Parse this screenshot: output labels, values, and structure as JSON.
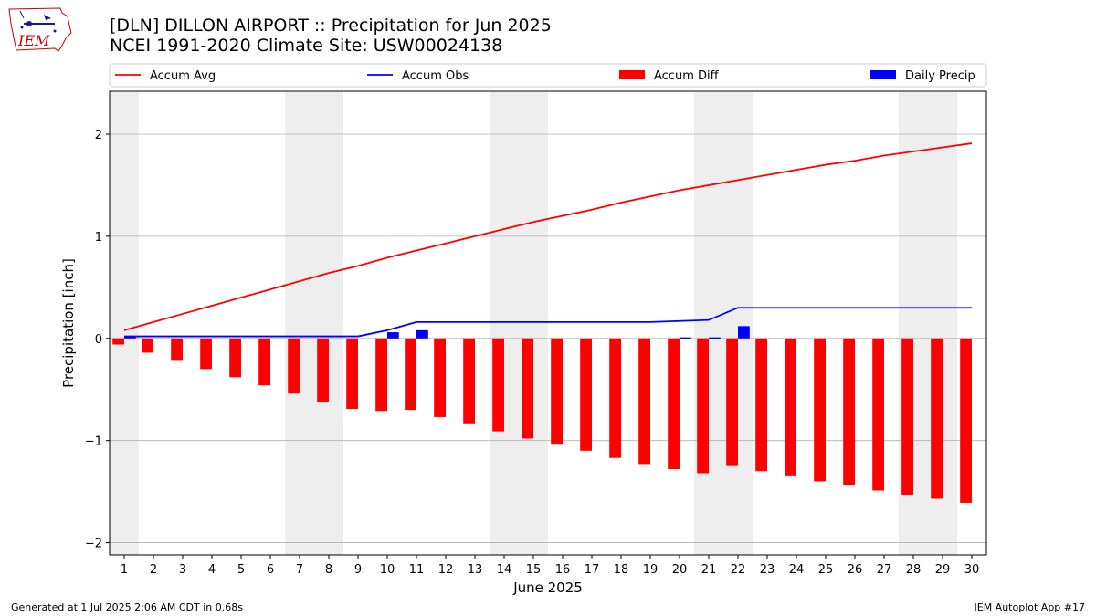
{
  "header": {
    "title": "[DLN] DILLON AIRPORT :: Precipitation for Jun 2025",
    "subtitle": "NCEI 1991-2020 Climate Site: USW00024138"
  },
  "logo": {
    "text": "IEM",
    "icon": "iem-logo-icon",
    "color": "#cc0000"
  },
  "footer": {
    "left": "Generated at 1 Jul 2025 2:06 AM CDT in 0.68s",
    "right": "IEM Autoplot App #17"
  },
  "colors": {
    "avg": "#ff0000",
    "obs": "#0000ff",
    "diff": "#ff0000",
    "daily": "#0000ff",
    "weekend_shade": "#eeeeee",
    "grid": "#b0b0b0"
  },
  "chart_data": {
    "type": "bar",
    "xlabel": "June 2025",
    "ylabel": "Precipitation [inch]",
    "ylim": [
      -2.12,
      2.42
    ],
    "yticks": [
      -2,
      -1,
      0,
      1,
      2
    ],
    "ytick_labels": [
      "−2",
      "−1",
      "0",
      "1",
      "2"
    ],
    "grid": "horizontal",
    "legend_placement": "top",
    "days": [
      1,
      2,
      3,
      4,
      5,
      6,
      7,
      8,
      9,
      10,
      11,
      12,
      13,
      14,
      15,
      16,
      17,
      18,
      19,
      20,
      21,
      22,
      23,
      24,
      25,
      26,
      27,
      28,
      29,
      30
    ],
    "weekend_days": [
      1,
      7,
      8,
      14,
      15,
      21,
      22,
      28,
      29
    ],
    "legend": [
      "Accum Avg",
      "Accum Obs",
      "Accum Diff",
      "Daily Precip"
    ],
    "series": [
      {
        "name": "Accum Avg",
        "kind": "line",
        "color": "#ff0000",
        "values": [
          0.08,
          0.16,
          0.24,
          0.32,
          0.4,
          0.48,
          0.56,
          0.64,
          0.71,
          0.79,
          0.86,
          0.93,
          1.0,
          1.07,
          1.14,
          1.2,
          1.26,
          1.33,
          1.39,
          1.45,
          1.5,
          1.55,
          1.6,
          1.65,
          1.7,
          1.74,
          1.79,
          1.83,
          1.87,
          1.91
        ]
      },
      {
        "name": "Accum Obs",
        "kind": "line",
        "color": "#0000ff",
        "values": [
          0.02,
          0.02,
          0.02,
          0.02,
          0.02,
          0.02,
          0.02,
          0.02,
          0.02,
          0.08,
          0.16,
          0.16,
          0.16,
          0.16,
          0.16,
          0.16,
          0.16,
          0.16,
          0.16,
          0.17,
          0.18,
          0.3,
          0.3,
          0.3,
          0.3,
          0.3,
          0.3,
          0.3,
          0.3,
          0.3
        ]
      },
      {
        "name": "Accum Diff",
        "kind": "bar",
        "color": "#ff0000",
        "values": [
          -0.06,
          -0.14,
          -0.22,
          -0.3,
          -0.38,
          -0.46,
          -0.54,
          -0.62,
          -0.69,
          -0.71,
          -0.7,
          -0.77,
          -0.84,
          -0.91,
          -0.98,
          -1.04,
          -1.1,
          -1.17,
          -1.23,
          -1.28,
          -1.32,
          -1.25,
          -1.3,
          -1.35,
          -1.4,
          -1.44,
          -1.49,
          -1.53,
          -1.57,
          -1.61
        ]
      },
      {
        "name": "Daily Precip",
        "kind": "bar",
        "color": "#0000ff",
        "values": [
          0.02,
          0,
          0,
          0,
          0,
          0,
          0,
          0,
          0,
          0.06,
          0.08,
          0,
          0,
          0,
          0,
          0,
          0,
          0,
          0,
          0.01,
          0.01,
          0.12,
          0,
          0,
          0,
          0,
          0,
          0,
          0,
          0
        ]
      }
    ]
  }
}
